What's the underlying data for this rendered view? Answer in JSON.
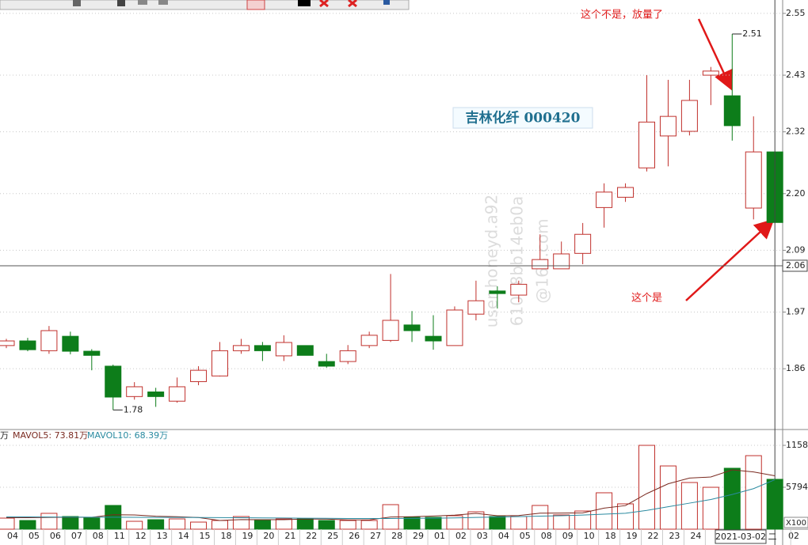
{
  "chart_data": [
    {
      "type": "candlestick",
      "title": "吉林化纤 000420",
      "categories": [
        "04",
        "05",
        "06",
        "07",
        "08",
        "11",
        "12",
        "13",
        "14",
        "15",
        "18",
        "19",
        "20",
        "21",
        "22",
        "25",
        "26",
        "27",
        "28",
        "29",
        "01",
        "02",
        "03",
        "04",
        "05",
        "08",
        "09",
        "10",
        "18",
        "19",
        "22",
        "23",
        "24",
        null,
        null,
        null,
        "02"
      ],
      "open": [
        1.905,
        1.914,
        1.895,
        1.923,
        1.894,
        1.865,
        1.806,
        1.815,
        1.797,
        1.835,
        1.846,
        1.895,
        1.905,
        1.885,
        1.905,
        1.874,
        1.874,
        1.905,
        1.915,
        1.945,
        1.923,
        1.905,
        1.966,
        2.011,
        2.003,
        2.054,
        2.054,
        2.084,
        2.173,
        2.193,
        2.25,
        2.312,
        2.321,
        2.43,
        2.39,
        2.172,
        2.281
      ],
      "high": [
        1.918,
        1.92,
        1.943,
        1.932,
        1.898,
        1.868,
        1.834,
        1.823,
        1.843,
        1.865,
        1.912,
        1.918,
        1.912,
        1.925,
        1.905,
        1.889,
        1.906,
        1.932,
        2.044,
        1.972,
        1.964,
        1.981,
        2.031,
        2.02,
        2.031,
        2.121,
        2.107,
        2.143,
        2.22,
        2.22,
        2.43,
        2.421,
        2.421,
        2.446,
        2.51,
        2.35,
        2.281
      ],
      "low": [
        1.9,
        1.894,
        1.889,
        1.888,
        1.857,
        1.78,
        1.8,
        1.786,
        1.794,
        1.828,
        1.845,
        1.889,
        1.875,
        1.875,
        1.886,
        1.862,
        1.869,
        1.9,
        1.912,
        1.912,
        1.897,
        1.905,
        1.954,
        1.977,
        1.989,
        2.054,
        2.054,
        2.063,
        2.134,
        2.184,
        2.243,
        2.253,
        2.313,
        2.372,
        2.303,
        2.15,
        2.144
      ],
      "close": [
        1.914,
        1.897,
        1.934,
        1.894,
        1.886,
        1.805,
        1.825,
        1.806,
        1.825,
        1.857,
        1.895,
        1.905,
        1.895,
        1.911,
        1.886,
        1.865,
        1.895,
        1.925,
        1.954,
        1.934,
        1.914,
        1.974,
        1.992,
        2.006,
        2.024,
        2.072,
        2.083,
        2.121,
        2.203,
        2.212,
        2.339,
        2.35,
        2.381,
        2.438,
        2.332,
        2.281,
        2.144
      ],
      "up_color": "#c0302c",
      "down_color": "#0d7d1a",
      "ylim": [
        1.742,
        2.576
      ],
      "yticks": [
        2.55,
        2.43,
        2.32,
        {
          "value": 2.2,
          "label": "2.20"
        },
        2.09,
        1.97,
        1.86
      ],
      "grid": true,
      "crosshair_price": 2.06,
      "crosshair_date": "2021-03-02",
      "crosshair_weekday": "二",
      "annotations": [
        "这个不是，放量了",
        "这个是"
      ],
      "watermark": [
        "user:honeyd.a92",
        "610d8bb14eb0a",
        "@163.com"
      ]
    },
    {
      "type": "bar",
      "label": "万",
      "values": [
        1530,
        1200,
        2190,
        1750,
        1530,
        3280,
        1090,
        1310,
        1420,
        980,
        1200,
        1750,
        1200,
        1420,
        1420,
        1200,
        1200,
        1200,
        3390,
        1640,
        1640,
        1860,
        2400,
        1750,
        1750,
        3280,
        1970,
        2510,
        5030,
        3500,
        11585,
        8740,
        6450,
        5790,
        8420,
        10160,
        6890
      ],
      "ylim": [
        0,
        12680
      ],
      "yticks": [
        11585,
        5794
      ],
      "unit": "X100",
      "series": [
        {
          "name": "MAVOL5: 73.81万",
          "color": "#7a2a20",
          "values": [
            1600,
            1580,
            1620,
            1650,
            1640,
            1990,
            1968,
            1792,
            1726,
            1616,
            1200,
            1332,
            1310,
            1310,
            1398,
            1398,
            1288,
            1288,
            1682,
            1726,
            1814,
            1946,
            2186,
            1858,
            1880,
            2208,
            2230,
            2252,
            2908,
            3258,
            4919,
            6273,
            7061,
            7213,
            8197,
            7912,
            7381
          ]
        },
        {
          "name": "MAVOL10: 68.39万",
          "color": "#2a8aa0",
          "values": [
            1700,
            1690,
            1680,
            1670,
            1660,
            1650,
            1640,
            1630,
            1620,
            1610,
            1600,
            1580,
            1560,
            1540,
            1520,
            1500,
            1480,
            1470,
            1480,
            1500,
            1520,
            1560,
            1620,
            1680,
            1740,
            1800,
            1860,
            1960,
            2080,
            2200,
            2600,
            3100,
            3600,
            4100,
            4800,
            5600,
            6839
          ]
        }
      ]
    }
  ]
}
